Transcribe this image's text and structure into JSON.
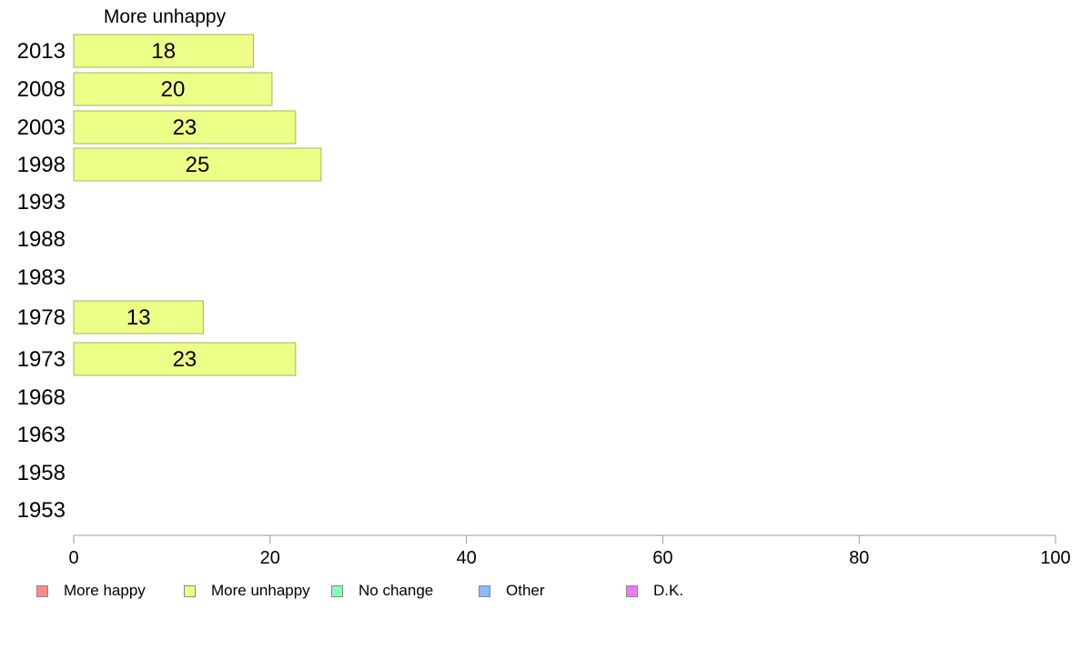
{
  "chart_data": {
    "type": "bar",
    "orientation": "horizontal",
    "title": "More unhappy",
    "categories": [
      "2013",
      "2008",
      "2003",
      "1998",
      "1993",
      "1988",
      "1983",
      "1978",
      "1973",
      "1968",
      "1963",
      "1958",
      "1953"
    ],
    "series": [
      {
        "name": "More unhappy",
        "color": "#eeff88",
        "values": [
          18.3,
          20.2,
          22.6,
          25.2,
          null,
          null,
          null,
          13.2,
          22.6,
          null,
          null,
          null,
          null
        ],
        "labels": [
          "18",
          "20",
          "23",
          "25",
          "",
          "",
          "",
          "13",
          "23",
          "",
          "",
          "",
          ""
        ]
      }
    ],
    "xlim": [
      0,
      100
    ],
    "xticks": [
      "0",
      "20",
      "40",
      "60",
      "80",
      "100"
    ],
    "grid": false,
    "legend_position": "bottom"
  },
  "legend": [
    {
      "label": "More happy",
      "color": "#ff8888"
    },
    {
      "label": "More unhappy",
      "color": "#eeff88"
    },
    {
      "label": "No change",
      "color": "#88ffbb"
    },
    {
      "label": "Other",
      "color": "#88bbff"
    },
    {
      "label": "D.K.",
      "color": "#ee77ff"
    }
  ]
}
